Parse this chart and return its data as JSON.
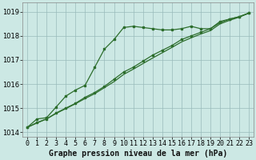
{
  "bg_color": "#cce8e4",
  "grid_color": "#99bbbb",
  "line_color": "#2d6e2d",
  "xlabel": "Graphe pression niveau de la mer (hPa)",
  "ylim": [
    1013.8,
    1019.4
  ],
  "xlim": [
    -0.5,
    23.5
  ],
  "yticks": [
    1014,
    1015,
    1016,
    1017,
    1018,
    1019
  ],
  "xticks": [
    0,
    1,
    2,
    3,
    4,
    5,
    6,
    7,
    8,
    9,
    10,
    11,
    12,
    13,
    14,
    15,
    16,
    17,
    18,
    19,
    20,
    21,
    22,
    23
  ],
  "series1_x": [
    0,
    1,
    2,
    3,
    4,
    5,
    6,
    7,
    8,
    9,
    10,
    11,
    12,
    13,
    14,
    15,
    16,
    17,
    18,
    19,
    20,
    21,
    22,
    23
  ],
  "series1_y": [
    1014.2,
    1014.55,
    1014.6,
    1015.05,
    1015.5,
    1015.75,
    1015.95,
    1016.7,
    1017.45,
    1017.85,
    1018.35,
    1018.4,
    1018.35,
    1018.3,
    1018.25,
    1018.25,
    1018.3,
    1018.4,
    1018.3,
    1018.3,
    1018.6,
    1018.7,
    1018.8,
    1018.95
  ],
  "series2_x": [
    0,
    1,
    2,
    3,
    4,
    5,
    6,
    7,
    8,
    9,
    10,
    11,
    12,
    13,
    14,
    15,
    16,
    17,
    18,
    19,
    20,
    21,
    22,
    23
  ],
  "series2_y": [
    1014.2,
    1014.4,
    1014.55,
    1014.8,
    1015.0,
    1015.2,
    1015.45,
    1015.65,
    1015.9,
    1016.2,
    1016.5,
    1016.7,
    1016.95,
    1017.2,
    1017.4,
    1017.6,
    1017.85,
    1018.0,
    1018.15,
    1018.3,
    1018.55,
    1018.7,
    1018.8,
    1018.95
  ],
  "series3_x": [
    0,
    1,
    2,
    3,
    4,
    5,
    6,
    7,
    8,
    9,
    10,
    11,
    12,
    13,
    14,
    15,
    16,
    17,
    18,
    19,
    20,
    21,
    22,
    23
  ],
  "series3_y": [
    1014.2,
    1014.38,
    1014.55,
    1014.78,
    1014.98,
    1015.18,
    1015.4,
    1015.6,
    1015.85,
    1016.1,
    1016.4,
    1016.62,
    1016.85,
    1017.08,
    1017.3,
    1017.52,
    1017.75,
    1017.92,
    1018.08,
    1018.22,
    1018.5,
    1018.65,
    1018.78,
    1018.95
  ],
  "xlabel_fontsize": 7,
  "tick_fontsize": 6,
  "markersize": 2.0,
  "linewidth": 0.9
}
